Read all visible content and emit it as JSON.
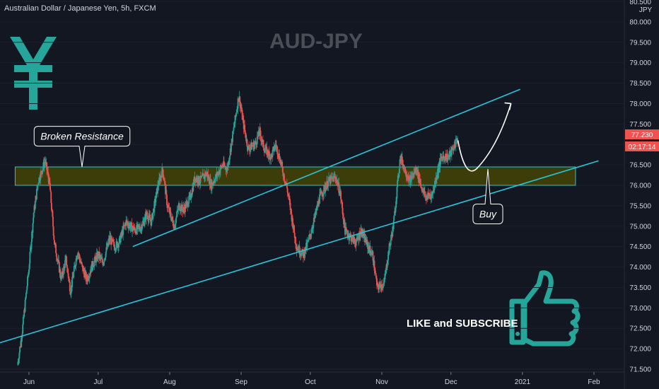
{
  "header": {
    "symbol_text": "Australian Dollar / Japanese Yen, 5h, FXCM",
    "currency": "JPY"
  },
  "chart_data": {
    "type": "candlestick",
    "title": "AUD-JPY",
    "x_ticks": [
      "Jun",
      "Jul",
      "Aug",
      "Sep",
      "Oct",
      "Nov",
      "Dec",
      "2021",
      "Feb"
    ],
    "y_ticks": [
      "71.500",
      "72.000",
      "72.500",
      "73.000",
      "73.500",
      "74.000",
      "74.500",
      "75.000",
      "75.500",
      "76.000",
      "76.500",
      "77.000",
      "77.500",
      "78.000",
      "78.500",
      "79.000",
      "79.500",
      "80.000",
      "80.500"
    ],
    "ylim": [
      71.5,
      80.5
    ],
    "last_price": "77.230",
    "countdown": "02:17:14",
    "price_path": [
      [
        "2020-05-27",
        71.6
      ],
      [
        "2020-05-29",
        72.4
      ],
      [
        "2020-06-01",
        74.0
      ],
      [
        "2020-06-03",
        75.3
      ],
      [
        "2020-06-05",
        76.1
      ],
      [
        "2020-06-08",
        76.6
      ],
      [
        "2020-06-10",
        76.0
      ],
      [
        "2020-06-12",
        74.6
      ],
      [
        "2020-06-15",
        73.7
      ],
      [
        "2020-06-17",
        74.2
      ],
      [
        "2020-06-19",
        73.4
      ],
      [
        "2020-06-22",
        74.4
      ],
      [
        "2020-06-24",
        74.0
      ],
      [
        "2020-06-26",
        73.7
      ],
      [
        "2020-06-29",
        74.1
      ],
      [
        "2020-07-01",
        74.3
      ],
      [
        "2020-07-03",
        74.1
      ],
      [
        "2020-07-06",
        74.7
      ],
      [
        "2020-07-08",
        74.5
      ],
      [
        "2020-07-10",
        74.6
      ],
      [
        "2020-07-13",
        75.1
      ],
      [
        "2020-07-15",
        75.0
      ],
      [
        "2020-07-17",
        74.9
      ],
      [
        "2020-07-20",
        75.0
      ],
      [
        "2020-07-22",
        75.3
      ],
      [
        "2020-07-24",
        75.1
      ],
      [
        "2020-07-27",
        76.0
      ],
      [
        "2020-07-29",
        76.4
      ],
      [
        "2020-07-31",
        75.5
      ],
      [
        "2020-08-03",
        75.0
      ],
      [
        "2020-08-05",
        75.5
      ],
      [
        "2020-08-07",
        75.4
      ],
      [
        "2020-08-10",
        75.7
      ],
      [
        "2020-08-12",
        76.2
      ],
      [
        "2020-08-14",
        76.1
      ],
      [
        "2020-08-17",
        76.3
      ],
      [
        "2020-08-19",
        76.0
      ],
      [
        "2020-08-21",
        76.2
      ],
      [
        "2020-08-24",
        76.5
      ],
      [
        "2020-08-26",
        76.4
      ],
      [
        "2020-08-28",
        77.1
      ],
      [
        "2020-08-31",
        78.2
      ],
      [
        "2020-09-02",
        77.5
      ],
      [
        "2020-09-04",
        76.9
      ],
      [
        "2020-09-07",
        77.0
      ],
      [
        "2020-09-09",
        77.3
      ],
      [
        "2020-09-11",
        76.9
      ],
      [
        "2020-09-14",
        76.7
      ],
      [
        "2020-09-16",
        77.0
      ],
      [
        "2020-09-18",
        76.6
      ],
      [
        "2020-09-21",
        75.9
      ],
      [
        "2020-09-23",
        75.2
      ],
      [
        "2020-09-25",
        74.5
      ],
      [
        "2020-09-28",
        74.3
      ],
      [
        "2020-09-30",
        74.6
      ],
      [
        "2020-10-02",
        75.0
      ],
      [
        "2020-10-05",
        75.7
      ],
      [
        "2020-10-07",
        75.9
      ],
      [
        "2020-10-09",
        76.1
      ],
      [
        "2020-10-12",
        76.2
      ],
      [
        "2020-10-14",
        75.8
      ],
      [
        "2020-10-16",
        74.9
      ],
      [
        "2020-10-19",
        74.7
      ],
      [
        "2020-10-21",
        74.6
      ],
      [
        "2020-10-23",
        74.9
      ],
      [
        "2020-10-26",
        74.5
      ],
      [
        "2020-10-28",
        74.3
      ],
      [
        "2020-10-30",
        73.5
      ],
      [
        "2020-11-02",
        73.6
      ],
      [
        "2020-11-04",
        74.4
      ],
      [
        "2020-11-06",
        75.0
      ],
      [
        "2020-11-09",
        76.7
      ],
      [
        "2020-11-11",
        76.4
      ],
      [
        "2020-11-13",
        76.1
      ],
      [
        "2020-11-16",
        76.4
      ],
      [
        "2020-11-18",
        76.0
      ],
      [
        "2020-11-20",
        75.7
      ],
      [
        "2020-11-23",
        75.8
      ],
      [
        "2020-11-25",
        76.3
      ],
      [
        "2020-11-27",
        76.7
      ],
      [
        "2020-11-30",
        76.7
      ],
      [
        "2020-12-02",
        76.9
      ],
      [
        "2020-12-04",
        77.2
      ]
    ],
    "resistance_zone": {
      "from": "2020-05-26",
      "to": "2021-01-24",
      "low": 76.0,
      "high": 76.45
    },
    "channel_upper": [
      [
        "2020-07-16",
        74.5
      ],
      [
        "2020-12-31",
        78.35
      ]
    ],
    "channel_lower": [
      [
        "2020-05-05",
        71.9
      ],
      [
        "2021-02-03",
        76.6
      ]
    ],
    "projection": [
      [
        "2020-12-04",
        77.1
      ],
      [
        "2020-12-12",
        76.4
      ],
      [
        "2020-12-18",
        76.75
      ],
      [
        "2020-12-27",
        78.0
      ]
    ],
    "annotations": [
      {
        "text": "Broken Resistance",
        "date": "2020-06-24",
        "price": 77.2,
        "pointer_price": 76.45
      },
      {
        "text": "Buy",
        "date": "2020-12-17",
        "price": 75.3,
        "pointer_price": 76.4
      }
    ],
    "callout": "LIKE and SUBSCRIBE",
    "colors": {
      "background": "#131722",
      "up": "#26a69a",
      "down": "#ef5350",
      "channel": "#26c6da",
      "zone_fill": "#3d3d0a",
      "zone_border": "#26c6da",
      "currency_icon": "#26a69a",
      "thumb_icon": "#26a69a",
      "price_tag": "#ef5350",
      "title": "#4b4e57"
    }
  }
}
